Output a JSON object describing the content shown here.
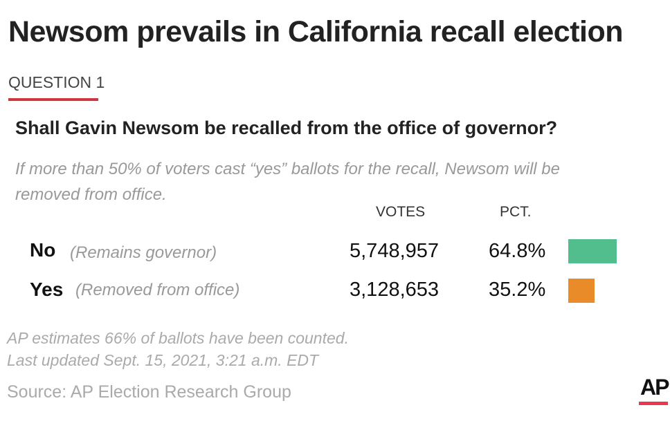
{
  "title": "Newsom prevails in California recall election",
  "question_label": "QUESTION 1",
  "question": "Shall Gavin Newsom be recalled from the office of governor?",
  "description": "If more than 50% of voters cast “yes” ballots for the recall, Newsom will be removed from office.",
  "chart_data": {
    "type": "bar",
    "columns": {
      "votes": "VOTES",
      "pct": "PCT."
    },
    "rows": [
      {
        "name": "No",
        "note": "(Remains governor)",
        "votes": "5,748,957",
        "pct_label": "64.8%",
        "pct": 64.8,
        "color": "#52be8d"
      },
      {
        "name": "Yes",
        "note": "(Removed from office)",
        "votes": "3,128,653",
        "pct_label": "35.2%",
        "pct": 35.2,
        "color": "#e98b28"
      }
    ]
  },
  "footer": {
    "estimate": "AP estimates 66% of ballots have been counted.",
    "updated": "Last updated Sept. 15, 2021, 3:21 a.m. EDT",
    "source": "Source: AP Election Research Group",
    "logo": "AP"
  }
}
